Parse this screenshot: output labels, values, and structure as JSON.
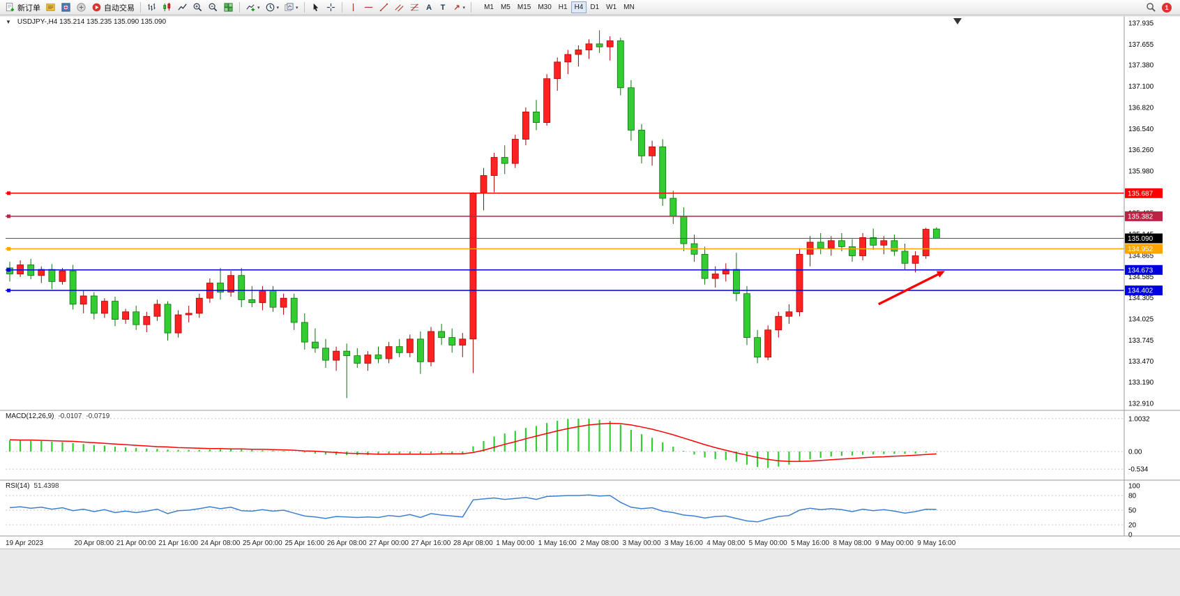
{
  "toolbar": {
    "new_order_label": "新订单",
    "autotrade_label": "自动交易",
    "timeframes": [
      "M1",
      "M5",
      "M15",
      "M30",
      "H1",
      "H4",
      "D1",
      "W1",
      "MN"
    ],
    "active_timeframe": "H4",
    "notification_count": "1",
    "icons": [
      "new-order",
      "market-watch",
      "navigator",
      "data-window",
      "autotrade",
      "bar-chart",
      "candlestick-chart",
      "line-chart",
      "zoom-in",
      "zoom-out",
      "tile-windows",
      "indicators",
      "periods",
      "templates",
      "cursor",
      "crosshair",
      "vertical-line",
      "horizontal-line",
      "trendline",
      "channel",
      "fibonacci",
      "text",
      "label",
      "arrow-tools",
      "search",
      "notifications"
    ]
  },
  "chart": {
    "symbol": "USDJPY-",
    "period": "H4",
    "header": "USDJPY-,H4 135.214 135.235 135.090 135.090"
  },
  "indicators": {
    "macd_title": "MACD(12,26,9)",
    "macd_value1": "-0.0107",
    "macd_value2": "-0.0719",
    "rsi_title": "RSI(14)",
    "rsi_value": "51.4398"
  },
  "chart_data": {
    "type": "candlestick",
    "symbol": "USDJPY-",
    "timeframe": "H4",
    "ohlc_header": [
      135.214,
      135.235,
      135.09,
      135.09
    ],
    "y_ticks": [
      "137.935",
      "137.655",
      "137.380",
      "137.100",
      "136.820",
      "136.540",
      "136.260",
      "135.980",
      "135.700",
      "135.425",
      "135.145",
      "134.865",
      "134.585",
      "134.305",
      "134.025",
      "133.745",
      "133.470",
      "133.190",
      "132.910"
    ],
    "x_labels": [
      "19 Apr 2023",
      "20 Apr 08:00",
      "21 Apr 00:00",
      "21 Apr 16:00",
      "24 Apr 08:00",
      "25 Apr 00:00",
      "25 Apr 16:00",
      "26 Apr 08:00",
      "27 Apr 00:00",
      "27 Apr 16:00",
      "28 Apr 08:00",
      "1 May 00:00",
      "1 May 16:00",
      "2 May 08:00",
      "3 May 00:00",
      "3 May 16:00",
      "4 May 08:00",
      "5 May 00:00",
      "5 May 16:00",
      "8 May 08:00",
      "9 May 00:00",
      "9 May 16:00"
    ],
    "candles": [
      [
        134.7,
        134.78,
        134.52,
        134.62
      ],
      [
        134.62,
        134.8,
        134.58,
        134.74
      ],
      [
        134.74,
        134.82,
        134.55,
        134.6
      ],
      [
        134.6,
        134.72,
        134.5,
        134.68
      ],
      [
        134.68,
        134.75,
        134.42,
        134.52
      ],
      [
        134.52,
        134.7,
        134.48,
        134.66
      ],
      [
        134.66,
        134.74,
        134.15,
        134.22
      ],
      [
        134.22,
        134.4,
        134.1,
        134.33
      ],
      [
        134.33,
        134.38,
        134.02,
        134.1
      ],
      [
        134.1,
        134.3,
        134.04,
        134.26
      ],
      [
        134.26,
        134.32,
        133.93,
        134.02
      ],
      [
        134.02,
        134.16,
        133.96,
        134.12
      ],
      [
        134.12,
        134.2,
        133.88,
        133.95
      ],
      [
        133.95,
        134.12,
        133.85,
        134.06
      ],
      [
        134.06,
        134.28,
        134.0,
        134.22
      ],
      [
        134.22,
        134.26,
        133.74,
        133.84
      ],
      [
        133.84,
        134.14,
        133.78,
        134.08
      ],
      [
        134.08,
        134.2,
        133.98,
        134.1
      ],
      [
        134.1,
        134.36,
        134.04,
        134.3
      ],
      [
        134.3,
        134.56,
        134.24,
        134.5
      ],
      [
        134.5,
        134.7,
        134.28,
        134.38
      ],
      [
        134.38,
        134.66,
        134.32,
        134.6
      ],
      [
        134.6,
        134.7,
        134.18,
        134.28
      ],
      [
        134.28,
        134.46,
        134.18,
        134.24
      ],
      [
        134.24,
        134.46,
        134.14,
        134.4
      ],
      [
        134.4,
        134.46,
        134.12,
        134.18
      ],
      [
        134.18,
        134.36,
        134.08,
        134.3
      ],
      [
        134.3,
        134.36,
        133.88,
        133.98
      ],
      [
        133.98,
        134.1,
        133.62,
        133.72
      ],
      [
        133.72,
        133.9,
        133.58,
        133.64
      ],
      [
        133.64,
        133.76,
        133.38,
        133.48
      ],
      [
        133.48,
        133.66,
        133.34,
        133.6
      ],
      [
        133.6,
        133.7,
        132.98,
        133.54
      ],
      [
        133.54,
        133.64,
        133.38,
        133.44
      ],
      [
        133.44,
        133.6,
        133.34,
        133.55
      ],
      [
        133.55,
        133.66,
        133.44,
        133.5
      ],
      [
        133.5,
        133.72,
        133.44,
        133.66
      ],
      [
        133.66,
        133.76,
        133.52,
        133.58
      ],
      [
        133.58,
        133.82,
        133.52,
        133.76
      ],
      [
        133.76,
        133.86,
        133.3,
        133.46
      ],
      [
        133.46,
        133.92,
        133.4,
        133.86
      ],
      [
        133.86,
        133.96,
        133.68,
        133.78
      ],
      [
        133.78,
        133.9,
        133.58,
        133.68
      ],
      [
        133.68,
        133.84,
        133.52,
        133.76
      ],
      [
        133.76,
        135.7,
        133.31,
        135.69
      ],
      [
        135.69,
        136.02,
        135.46,
        135.92
      ],
      [
        135.92,
        136.22,
        135.7,
        136.16
      ],
      [
        136.16,
        136.32,
        135.94,
        136.08
      ],
      [
        136.08,
        136.46,
        136.02,
        136.4
      ],
      [
        136.4,
        136.82,
        136.32,
        136.76
      ],
      [
        136.76,
        136.92,
        136.52,
        136.62
      ],
      [
        136.62,
        137.26,
        136.58,
        137.2
      ],
      [
        137.2,
        137.48,
        137.04,
        137.42
      ],
      [
        137.42,
        137.58,
        137.26,
        137.52
      ],
      [
        137.52,
        137.64,
        137.36,
        137.58
      ],
      [
        137.58,
        137.72,
        137.46,
        137.66
      ],
      [
        137.66,
        137.84,
        137.54,
        137.62
      ],
      [
        137.62,
        137.76,
        137.44,
        137.7
      ],
      [
        137.7,
        137.74,
        136.98,
        137.08
      ],
      [
        137.08,
        137.18,
        136.38,
        136.52
      ],
      [
        136.52,
        136.6,
        136.08,
        136.18
      ],
      [
        136.18,
        136.38,
        136.05,
        136.3
      ],
      [
        136.3,
        136.4,
        135.52,
        135.62
      ],
      [
        135.62,
        135.72,
        135.28,
        135.38
      ],
      [
        135.38,
        135.5,
        134.92,
        135.02
      ],
      [
        135.02,
        135.14,
        134.78,
        134.88
      ],
      [
        134.88,
        134.98,
        134.48,
        134.56
      ],
      [
        134.56,
        134.72,
        134.44,
        134.62
      ],
      [
        134.62,
        134.76,
        134.52,
        134.68
      ],
      [
        134.68,
        134.9,
        134.26,
        134.36
      ],
      [
        134.36,
        134.46,
        133.68,
        133.78
      ],
      [
        133.78,
        133.88,
        133.44,
        133.52
      ],
      [
        133.52,
        133.94,
        133.48,
        133.88
      ],
      [
        133.88,
        134.12,
        133.78,
        134.06
      ],
      [
        134.06,
        134.22,
        133.96,
        134.12
      ],
      [
        134.12,
        134.96,
        134.06,
        134.88
      ],
      [
        134.88,
        135.12,
        134.72,
        135.04
      ],
      [
        135.04,
        135.16,
        134.88,
        134.96
      ],
      [
        134.96,
        135.12,
        134.86,
        135.06
      ],
      [
        135.06,
        135.16,
        134.92,
        134.98
      ],
      [
        134.98,
        135.08,
        134.78,
        134.86
      ],
      [
        134.86,
        135.16,
        134.8,
        135.1
      ],
      [
        135.1,
        135.22,
        134.94,
        135.0
      ],
      [
        135.0,
        135.12,
        134.88,
        135.06
      ],
      [
        135.06,
        135.14,
        134.86,
        134.92
      ],
      [
        134.92,
        135.02,
        134.68,
        134.76
      ],
      [
        134.76,
        134.92,
        134.64,
        134.86
      ],
      [
        134.86,
        135.23,
        134.82,
        135.21
      ],
      [
        135.214,
        135.235,
        135.09,
        135.09
      ]
    ],
    "hlines": [
      {
        "price": 135.687,
        "label": "135.687",
        "color": "#ff0000"
      },
      {
        "price": 135.382,
        "label": "135.382",
        "color": "#bb2244"
      },
      {
        "price": 134.952,
        "label": "134.952",
        "color": "#ffa500"
      },
      {
        "price": 134.673,
        "label": "134.673",
        "color": "#0000dd"
      },
      {
        "price": 134.402,
        "label": "134.402",
        "color": "#0000dd"
      }
    ],
    "current_price": 135.09,
    "current_price_label": "135.090",
    "annotation_arrow": {
      "from_bar": 82.5,
      "from_price": 134.22,
      "to_bar": 88.8,
      "to_price": 134.66,
      "color": "#ff0000"
    },
    "macd": {
      "params": "12,26,9",
      "scale": [
        "1.0032",
        "0.00",
        "-0.534"
      ],
      "hist": [
        0.34,
        0.35,
        0.33,
        0.32,
        0.3,
        0.29,
        0.26,
        0.23,
        0.2,
        0.18,
        0.15,
        0.13,
        0.11,
        0.09,
        0.08,
        0.06,
        0.05,
        0.05,
        0.05,
        0.06,
        0.07,
        0.07,
        0.06,
        0.05,
        0.04,
        0.03,
        0.02,
        0.0,
        -0.03,
        -0.06,
        -0.09,
        -0.1,
        -0.11,
        -0.11,
        -0.11,
        -0.1,
        -0.09,
        -0.08,
        -0.07,
        -0.08,
        -0.06,
        -0.05,
        -0.05,
        -0.06,
        0.16,
        0.32,
        0.46,
        0.55,
        0.63,
        0.72,
        0.78,
        0.87,
        0.94,
        0.99,
        1.0,
        1.0,
        0.97,
        0.93,
        0.82,
        0.66,
        0.53,
        0.42,
        0.28,
        0.15,
        0.02,
        -0.09,
        -0.18,
        -0.23,
        -0.26,
        -0.31,
        -0.4,
        -0.47,
        -0.5,
        -0.46,
        -0.4,
        -0.31,
        -0.24,
        -0.19,
        -0.15,
        -0.13,
        -0.12,
        -0.1,
        -0.09,
        -0.08,
        -0.07,
        -0.07,
        -0.06,
        -0.03,
        -0.0107
      ],
      "signal": [
        0.36,
        0.35,
        0.35,
        0.34,
        0.33,
        0.32,
        0.31,
        0.29,
        0.27,
        0.25,
        0.23,
        0.21,
        0.19,
        0.17,
        0.15,
        0.14,
        0.12,
        0.11,
        0.1,
        0.09,
        0.09,
        0.08,
        0.08,
        0.07,
        0.07,
        0.06,
        0.05,
        0.04,
        0.02,
        0.01,
        -0.01,
        -0.03,
        -0.05,
        -0.06,
        -0.07,
        -0.08,
        -0.08,
        -0.08,
        -0.08,
        -0.08,
        -0.08,
        -0.07,
        -0.07,
        -0.07,
        -0.03,
        0.04,
        0.13,
        0.22,
        0.3,
        0.39,
        0.47,
        0.55,
        0.63,
        0.7,
        0.76,
        0.81,
        0.84,
        0.86,
        0.85,
        0.81,
        0.75,
        0.68,
        0.6,
        0.51,
        0.41,
        0.31,
        0.21,
        0.12,
        0.04,
        -0.04,
        -0.11,
        -0.18,
        -0.24,
        -0.28,
        -0.3,
        -0.3,
        -0.29,
        -0.27,
        -0.25,
        -0.23,
        -0.21,
        -0.19,
        -0.17,
        -0.16,
        -0.14,
        -0.13,
        -0.11,
        -0.09,
        -0.0719
      ]
    },
    "rsi": {
      "params": "14",
      "scale": [
        "100",
        "80",
        "50",
        "20",
        "0"
      ],
      "levels": [
        80,
        50,
        20
      ],
      "values": [
        55,
        57,
        54,
        56,
        52,
        55,
        49,
        52,
        47,
        51,
        45,
        48,
        45,
        48,
        52,
        43,
        49,
        50,
        53,
        57,
        53,
        56,
        49,
        48,
        51,
        48,
        50,
        44,
        38,
        36,
        33,
        37,
        36,
        35,
        36,
        35,
        39,
        37,
        41,
        35,
        43,
        40,
        38,
        36,
        71,
        73,
        75,
        72,
        74,
        76,
        72,
        78,
        79,
        80,
        80,
        81,
        79,
        80,
        66,
        56,
        53,
        55,
        48,
        45,
        40,
        38,
        34,
        37,
        38,
        33,
        28,
        26,
        32,
        37,
        39,
        50,
        54,
        51,
        53,
        51,
        47,
        52,
        49,
        51,
        48,
        44,
        47,
        52,
        51.4398
      ]
    },
    "colors": {
      "bull": "#ff2222",
      "bull_dark": "#aa0000",
      "bear": "#33cc33",
      "bear_dark": "#0c720c",
      "macd_hist": "#33cc33",
      "macd_signal": "#ff0000",
      "rsi_line": "#3c7fd0"
    }
  }
}
